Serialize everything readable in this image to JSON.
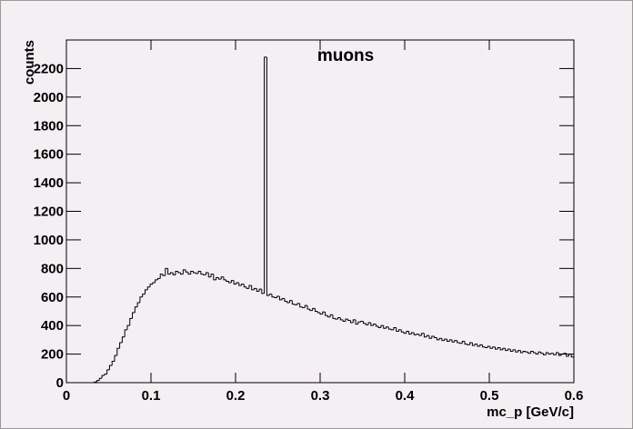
{
  "chart_data": {
    "type": "histogram",
    "title": "muons",
    "x_label": "mc_p [GeV/c]",
    "y_label": "counts",
    "bins": [
      0,
      0.003,
      0.006,
      0.009,
      0.012,
      0.015,
      0.018,
      0.021,
      0.024,
      0.027,
      0.03,
      0.033,
      0.036,
      0.039,
      0.042,
      0.045,
      0.048,
      0.051,
      0.054,
      0.057,
      0.06,
      0.063,
      0.066,
      0.069,
      0.072,
      0.075,
      0.078,
      0.081,
      0.084,
      0.087,
      0.09,
      0.093,
      0.096,
      0.099,
      0.102,
      0.105,
      0.108,
      0.111,
      0.114,
      0.117,
      0.12,
      0.123,
      0.126,
      0.129,
      0.132,
      0.135,
      0.138,
      0.141,
      0.144,
      0.147,
      0.15,
      0.153,
      0.156,
      0.159,
      0.162,
      0.165,
      0.168,
      0.171,
      0.174,
      0.177,
      0.18,
      0.183,
      0.186,
      0.189,
      0.192,
      0.195,
      0.198,
      0.201,
      0.204,
      0.207,
      0.21,
      0.213,
      0.216,
      0.219,
      0.222,
      0.225,
      0.228,
      0.231,
      0.234,
      0.237,
      0.24,
      0.243,
      0.246,
      0.249,
      0.252,
      0.255,
      0.258,
      0.261,
      0.264,
      0.267,
      0.27,
      0.273,
      0.276,
      0.279,
      0.282,
      0.285,
      0.288,
      0.291,
      0.294,
      0.297,
      0.3,
      0.303,
      0.306,
      0.309,
      0.312,
      0.315,
      0.318,
      0.321,
      0.324,
      0.327,
      0.33,
      0.333,
      0.336,
      0.339,
      0.342,
      0.345,
      0.348,
      0.351,
      0.354,
      0.357,
      0.36,
      0.363,
      0.366,
      0.369,
      0.372,
      0.375,
      0.378,
      0.381,
      0.384,
      0.387,
      0.39,
      0.393,
      0.396,
      0.399,
      0.402,
      0.405,
      0.408,
      0.411,
      0.414,
      0.417,
      0.42,
      0.423,
      0.426,
      0.429,
      0.432,
      0.435,
      0.438,
      0.441,
      0.444,
      0.447,
      0.45,
      0.453,
      0.456,
      0.459,
      0.462,
      0.465,
      0.468,
      0.471,
      0.474,
      0.477,
      0.48,
      0.483,
      0.486,
      0.489,
      0.492,
      0.495,
      0.498,
      0.501,
      0.504,
      0.507,
      0.51,
      0.513,
      0.516,
      0.519,
      0.522,
      0.525,
      0.528,
      0.531,
      0.534,
      0.537,
      0.54,
      0.543,
      0.546,
      0.549,
      0.552,
      0.555,
      0.558,
      0.561,
      0.564,
      0.567,
      0.57,
      0.573,
      0.576,
      0.579,
      0.582,
      0.585,
      0.588,
      0.591,
      0.594,
      0.597,
      0.6
    ],
    "values": [
      0,
      0,
      0,
      0,
      0,
      0,
      0,
      0,
      0,
      0,
      0,
      5,
      15,
      30,
      50,
      60,
      90,
      120,
      150,
      190,
      240,
      280,
      320,
      370,
      400,
      450,
      490,
      530,
      560,
      600,
      620,
      650,
      670,
      690,
      700,
      720,
      730,
      760,
      750,
      800,
      760,
      770,
      755,
      780,
      770,
      760,
      790,
      775,
      760,
      780,
      770,
      765,
      780,
      760,
      755,
      770,
      740,
      760,
      720,
      735,
      725,
      740,
      720,
      710,
      700,
      715,
      690,
      700,
      680,
      690,
      670,
      660,
      680,
      650,
      660,
      640,
      655,
      625,
      2280,
      610,
      620,
      600,
      595,
      605,
      580,
      590,
      570,
      560,
      575,
      550,
      545,
      555,
      530,
      525,
      540,
      515,
      505,
      520,
      500,
      490,
      480,
      495,
      470,
      460,
      475,
      450,
      445,
      455,
      440,
      430,
      445,
      435,
      420,
      440,
      410,
      425,
      430,
      415,
      405,
      420,
      400,
      410,
      395,
      385,
      400,
      380,
      390,
      375,
      370,
      385,
      360,
      370,
      355,
      345,
      360,
      340,
      350,
      335,
      340,
      330,
      345,
      320,
      330,
      310,
      325,
      315,
      300,
      310,
      295,
      305,
      290,
      300,
      285,
      295,
      280,
      275,
      290,
      270,
      265,
      280,
      260,
      270,
      255,
      265,
      250,
      245,
      255,
      240,
      250,
      235,
      245,
      230,
      240,
      225,
      235,
      220,
      230,
      215,
      225,
      210,
      220,
      215,
      205,
      220,
      210,
      200,
      215,
      205,
      195,
      210,
      200,
      205,
      195,
      210,
      190,
      200,
      205,
      185,
      200,
      180
    ],
    "color": "#000000",
    "xlim": [
      0,
      0.6
    ],
    "xticks": [
      0,
      0.1,
      0.2,
      0.3,
      0.4,
      0.5,
      0.6
    ],
    "ylim": [
      0,
      2400
    ],
    "yticks": [
      0,
      200,
      400,
      600,
      800,
      1000,
      1200,
      1400,
      1600,
      1800,
      2000,
      2200
    ]
  }
}
